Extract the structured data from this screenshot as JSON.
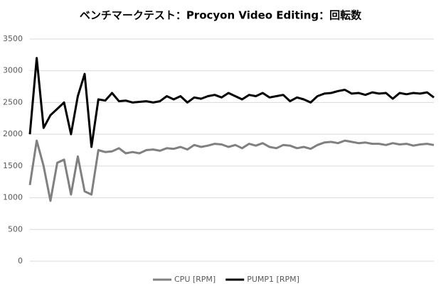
{
  "chart_data": {
    "type": "line",
    "title": "ベンチマークテスト：Procyon Video Editing：回転数",
    "series": [
      {
        "name": "CPU [RPM]",
        "color": "#808080",
        "values": [
          1200,
          1900,
          1500,
          950,
          1550,
          1600,
          1050,
          1650,
          1100,
          1050,
          1750,
          1720,
          1730,
          1780,
          1700,
          1720,
          1700,
          1750,
          1760,
          1740,
          1780,
          1770,
          1800,
          1760,
          1830,
          1800,
          1820,
          1850,
          1840,
          1800,
          1830,
          1780,
          1850,
          1820,
          1860,
          1800,
          1780,
          1830,
          1820,
          1780,
          1800,
          1770,
          1830,
          1870,
          1880,
          1860,
          1900,
          1880,
          1860,
          1870,
          1850,
          1850,
          1830,
          1860,
          1840,
          1850,
          1820,
          1840,
          1850,
          1830
        ]
      },
      {
        "name": "PUMP1 [RPM]",
        "color": "#000000",
        "values": [
          2000,
          3200,
          2100,
          2300,
          2400,
          2500,
          2000,
          2600,
          2950,
          1800,
          2550,
          2530,
          2650,
          2520,
          2530,
          2500,
          2510,
          2520,
          2500,
          2520,
          2600,
          2550,
          2600,
          2500,
          2580,
          2560,
          2600,
          2620,
          2580,
          2650,
          2600,
          2550,
          2620,
          2600,
          2650,
          2580,
          2600,
          2620,
          2520,
          2580,
          2550,
          2500,
          2600,
          2640,
          2650,
          2680,
          2700,
          2640,
          2650,
          2620,
          2660,
          2640,
          2650,
          2560,
          2650,
          2630,
          2650,
          2640,
          2660,
          2580
        ]
      }
    ],
    "ylim": [
      0,
      3500
    ],
    "yticks": [
      0,
      500,
      1000,
      1500,
      2000,
      2500,
      3000,
      3500
    ],
    "grid": true,
    "legend": "bottom"
  }
}
